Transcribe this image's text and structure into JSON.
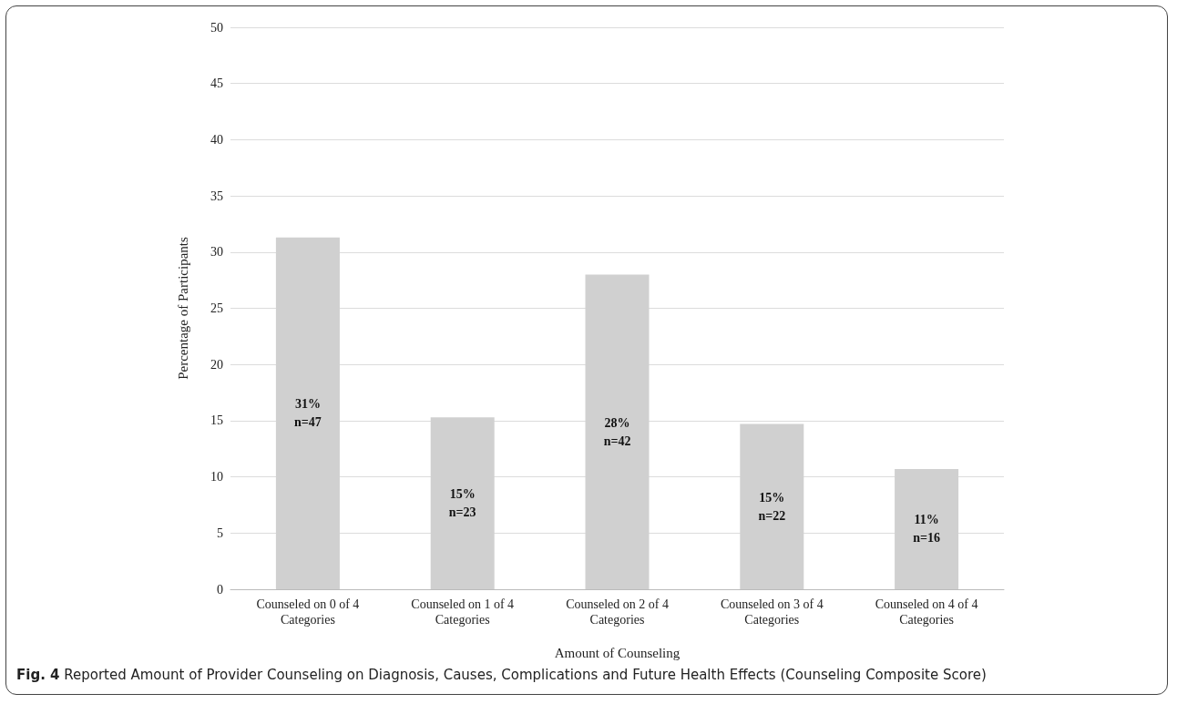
{
  "chart_data": {
    "type": "bar",
    "categories": [
      "Counseled on 0 of 4 Categories",
      "Counseled on 1 of 4 Categories",
      "Counseled on 2 of 4 Categories",
      "Counseled on 3 of 4 Categories",
      "Counseled on 4 of 4 Categories"
    ],
    "values": [
      31.3,
      15.3,
      28,
      14.7,
      10.7
    ],
    "value_labels": [
      "31%\nn=47",
      "15%\nn=23",
      "28%\nn=42",
      "15%\nn=22",
      "11%\nn=16"
    ],
    "color": "#d0d0d0",
    "xlabel": "Amount of Counseling",
    "ylabel": "Percentage of Participants",
    "ylim": [
      0,
      50
    ],
    "yticks": [
      0,
      5,
      10,
      15,
      20,
      25,
      30,
      35,
      40,
      45,
      50
    ],
    "grid": "y",
    "annotations": [
      "Fig. 4 Reported Amount of Provider Counseling on Diagnosis, Causes, Complications and Future Health Effects (Counseling Composite Score)"
    ]
  }
}
